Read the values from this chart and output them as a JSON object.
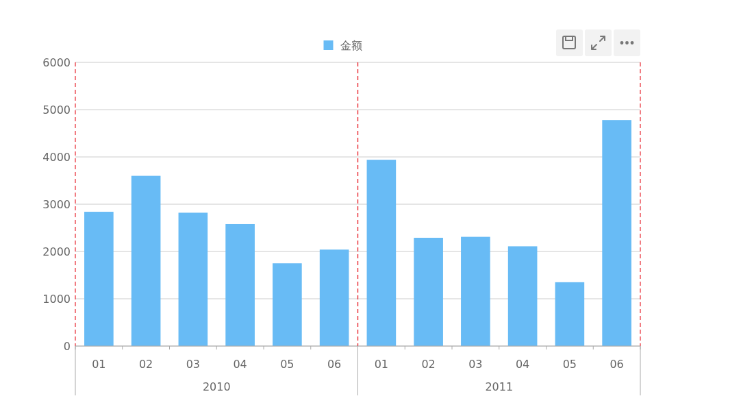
{
  "chart_data": [
    {
      "type": "bar",
      "categories": [
        "01",
        "02",
        "03",
        "04",
        "05",
        "06"
      ],
      "xlabel": "2010",
      "series": [
        {
          "name": "金额",
          "color": "#68bbf5",
          "values": [
            2840,
            3600,
            2820,
            2580,
            1750,
            2040
          ]
        }
      ],
      "ylim": [
        0,
        6000
      ],
      "yticks": [
        0,
        1000,
        2000,
        3000,
        4000,
        5000,
        6000
      ],
      "grid": "y",
      "legend": "top"
    },
    {
      "type": "bar",
      "categories": [
        "01",
        "02",
        "03",
        "04",
        "05",
        "06"
      ],
      "xlabel": "2011",
      "series": [
        {
          "color": "#68bbf5",
          "values": [
            3940,
            2290,
            2310,
            2110,
            1350,
            4780
          ]
        }
      ],
      "ylim": [
        0,
        6000
      ],
      "yticks": [
        0,
        1000,
        2000,
        3000,
        4000,
        5000,
        6000
      ],
      "grid": "y",
      "tick_labels": "x"
    }
  ]
}
